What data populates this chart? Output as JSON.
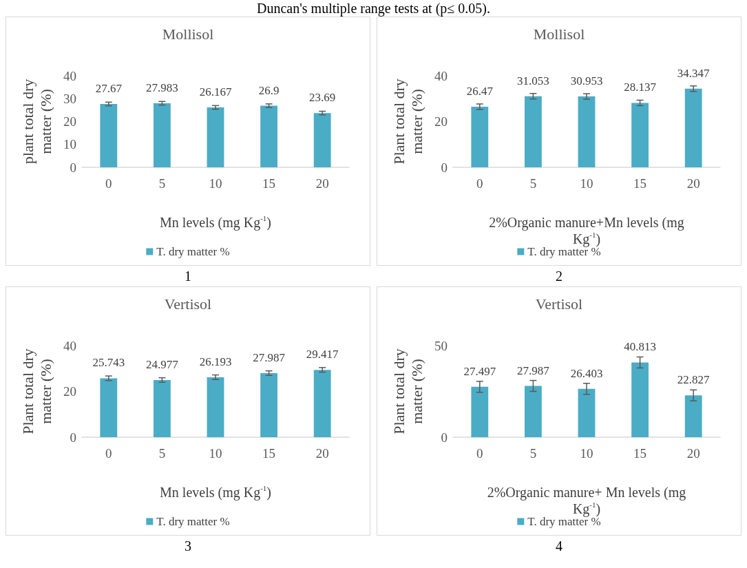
{
  "chart_data": [
    {
      "type": "bar",
      "title": "Mollisol",
      "xlabel": "Mn levels (mg Kg$^{-1}$)",
      "ylabel": "plant total dry matter (%)",
      "categories": [
        "0",
        "5",
        "10",
        "15",
        "20"
      ],
      "series": [
        {
          "name": "T. dry matter %",
          "color": "#4bacc6",
          "values": [
            27.67,
            27.983,
            26.167,
            26.9,
            23.69
          ],
          "errors": [
            0.8,
            0.8,
            0.8,
            0.8,
            0.8
          ]
        }
      ],
      "ylim": [
        0,
        40
      ],
      "yticks": [
        0,
        10,
        20,
        30,
        40
      ],
      "data_labels": true,
      "grid": false,
      "legend": "bottom",
      "annotations": [
        "Duncan's multiple range tests at (p≤ 0.05).",
        "1"
      ]
    },
    {
      "type": "bar",
      "title": "Mollisol",
      "xlabel": "2%Organic manure+Mn levels (mg Kg$^{-1}$)",
      "ylabel": "Plant total dry matter (%)",
      "categories": [
        "0",
        "5",
        "10",
        "15",
        "20"
      ],
      "series": [
        {
          "name": "T. dry matter %",
          "color": "#4bacc6",
          "values": [
            26.47,
            31.053,
            30.953,
            28.137,
            34.347
          ],
          "errors": [
            1.2,
            1.2,
            1.2,
            1.2,
            1.2
          ]
        }
      ],
      "ylim": [
        0,
        40
      ],
      "yticks": [
        0,
        20,
        40
      ],
      "data_labels": true,
      "grid": false,
      "legend": "bottom",
      "annotations": [
        "2"
      ]
    },
    {
      "type": "bar",
      "title": "Vertisol",
      "xlabel": "Mn levels (mg Kg$^{-1}$)",
      "ylabel": "Plant total dry matter (%)",
      "categories": [
        "0",
        "5",
        "10",
        "15",
        "20"
      ],
      "series": [
        {
          "name": "T. dry matter %",
          "color": "#4bacc6",
          "values": [
            25.743,
            24.977,
            26.193,
            27.987,
            29.417
          ],
          "errors": [
            1,
            1,
            1,
            1,
            1
          ]
        }
      ],
      "ylim": [
        0,
        40
      ],
      "yticks": [
        0,
        20,
        40
      ],
      "data_labels": true,
      "grid": false,
      "legend": "bottom",
      "annotations": [
        "3"
      ]
    },
    {
      "type": "bar",
      "title": "Vertisol",
      "xlabel": "2%Organic manure+ Mn levels (mg Kg$^{-1}$)",
      "ylabel": "Plant total dry matter (%)",
      "categories": [
        "0",
        "5",
        "10",
        "15",
        "20"
      ],
      "series": [
        {
          "name": "T. dry matter %",
          "color": "#4bacc6",
          "values": [
            27.497,
            27.987,
            26.403,
            40.813,
            22.827
          ],
          "errors": [
            3,
            3,
            3,
            3,
            3
          ]
        }
      ],
      "ylim": [
        0,
        50
      ],
      "yticks": [
        0,
        50
      ],
      "data_labels": true,
      "grid": false,
      "legend": "bottom",
      "annotations": [
        "4"
      ]
    }
  ]
}
